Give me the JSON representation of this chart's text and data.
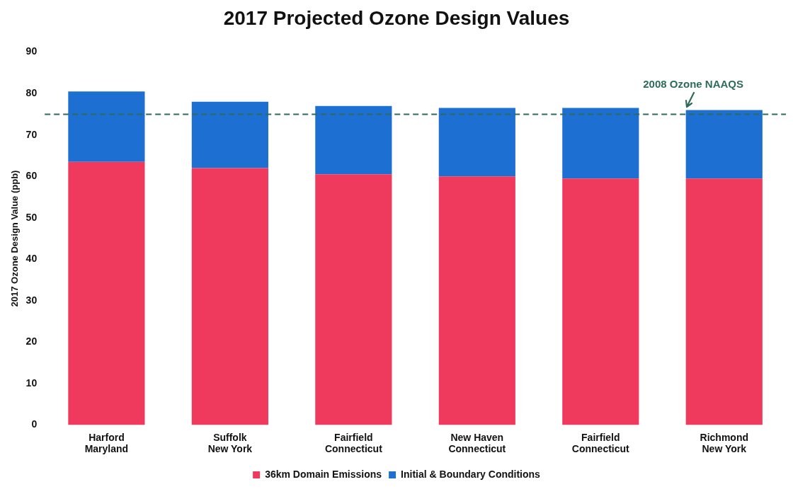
{
  "chart_data": {
    "type": "bar",
    "title": "2017 Projected Ozone Design Values",
    "ylabel": "2017 Ozone Design Value (ppb)",
    "categories": [
      "Harford\nMaryland",
      "Suffolk\nNew York",
      "Fairfield\nConnecticut",
      "New Haven\nConnecticut",
      "Fairfield\nConnecticut",
      "Richmond\nNew York"
    ],
    "stacked": true,
    "series": [
      {
        "name": "36km Domain Emissions",
        "color": "#ef3a5d",
        "values": [
          63.5,
          62,
          60.5,
          60,
          59.5,
          59.5
        ]
      },
      {
        "name": "Initial & Boundary Conditions",
        "color": "#1d6fd1",
        "values": [
          17,
          16,
          16.5,
          16.5,
          17,
          16.5
        ]
      }
    ],
    "ylim": [
      0,
      90
    ],
    "yticks": [
      0,
      10,
      20,
      30,
      40,
      50,
      60,
      70,
      80,
      90
    ],
    "ref_lines": [
      {
        "axis": "y",
        "value": 75,
        "label": "2008 Ozone NAAQS",
        "color": "#2f6b5c",
        "line_style": "dashed"
      }
    ],
    "grid": false,
    "legend": "bottom"
  }
}
